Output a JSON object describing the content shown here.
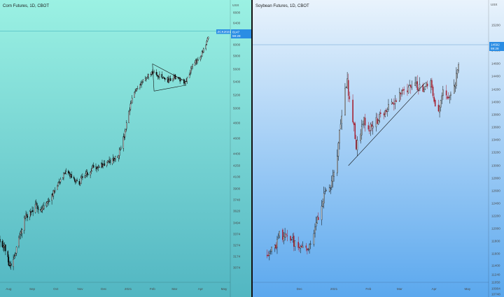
{
  "chart_data": [
    {
      "type": "candlestick",
      "title": "Corn Futures, 1D, CBOT",
      "currency": "USX",
      "ylim": [
        3000,
        6650
      ],
      "y_ticks": [
        "6600",
        "6400",
        "6200",
        "6000",
        "5800",
        "5600",
        "5400",
        "5200",
        "5000",
        "4800",
        "4600",
        "4400",
        "4250",
        "4100",
        "3900",
        "3740",
        "3620",
        "3494",
        "3374",
        "3274",
        "3174",
        "3074"
      ],
      "x_ticks": [
        "Aug",
        "Sep",
        "Oct",
        "Nov",
        "Dec",
        "2021",
        "Feb",
        "Mar",
        "Apr",
        "May"
      ],
      "price_badge": {
        "value": "6147",
        "label": "ZCK2021",
        "countdown": "59:28"
      },
      "gridlines": false,
      "background": [
        "#9bf1e3",
        "#52b6c2"
      ],
      "bullish_color": "#0b0b0b",
      "bearish_color": "#0b0b0b",
      "annotations": {
        "triangle_upper": [
          [
            "2021-02-10",
            5680
          ],
          [
            "2021-03-25",
            5400
          ]
        ],
        "triangle_lower": [
          [
            "2021-02-12",
            5260
          ],
          [
            "2021-03-25",
            5350
          ]
        ],
        "triangle_bracket": [
          [
            "2021-02-10",
            5680
          ],
          [
            "2021-02-12",
            5260
          ]
        ]
      },
      "series_path": [
        [
          "2020-07-31",
          3320
        ],
        [
          "2020-08-06",
          3260
        ],
        [
          "2020-08-11",
          3120
        ],
        [
          "2020-08-14",
          3100
        ],
        [
          "2020-08-20",
          3220
        ],
        [
          "2020-08-26",
          3380
        ],
        [
          "2020-09-01",
          3560
        ],
        [
          "2020-09-08",
          3600
        ],
        [
          "2020-09-16",
          3680
        ],
        [
          "2020-09-22",
          3640
        ],
        [
          "2020-09-30",
          3720
        ],
        [
          "2020-10-07",
          3850
        ],
        [
          "2020-10-13",
          4000
        ],
        [
          "2020-10-20",
          4120
        ],
        [
          "2020-10-26",
          4150
        ],
        [
          "2020-11-02",
          4050
        ],
        [
          "2020-11-09",
          3980
        ],
        [
          "2020-11-12",
          4100
        ],
        [
          "2020-11-20",
          4150
        ],
        [
          "2020-11-27",
          4250
        ],
        [
          "2020-12-04",
          4230
        ],
        [
          "2020-12-11",
          4270
        ],
        [
          "2020-12-18",
          4300
        ],
        [
          "2020-12-28",
          4380
        ],
        [
          "2021-01-05",
          4620
        ],
        [
          "2021-01-12",
          4980
        ],
        [
          "2021-01-15",
          5150
        ],
        [
          "2021-01-21",
          5300
        ],
        [
          "2021-01-27",
          5400
        ],
        [
          "2021-02-02",
          5450
        ],
        [
          "2021-02-09",
          5550
        ],
        [
          "2021-02-17",
          5500
        ],
        [
          "2021-02-24",
          5460
        ],
        [
          "2021-03-03",
          5420
        ],
        [
          "2021-03-10",
          5480
        ],
        [
          "2021-03-17",
          5440
        ],
        [
          "2021-03-24",
          5400
        ],
        [
          "2021-03-31",
          5600
        ],
        [
          "2021-04-07",
          5720
        ],
        [
          "2021-04-14",
          5850
        ],
        [
          "2021-04-19",
          5980
        ],
        [
          "2021-04-22",
          6150
        ]
      ]
    },
    {
      "type": "candlestick",
      "title": "Soybean Futures, 1D, CBOT",
      "currency": "USX",
      "ylim": [
        10600,
        15400
      ],
      "y_ticks": [
        "15200",
        "14800",
        "14600",
        "14400",
        "14200",
        "14000",
        "13800",
        "13600",
        "13400",
        "13200",
        "13000",
        "12800",
        "12600",
        "12400",
        "12200",
        "12000",
        "11800",
        "11600",
        "11400",
        "11240",
        "11050",
        "10904",
        "10748"
      ],
      "x_ticks": [
        "Dec",
        "2021",
        "Feb",
        "Mar",
        "Apr",
        "May"
      ],
      "price_badge": {
        "value": "14592",
        "countdown": "59:28"
      },
      "gridlines": false,
      "background": [
        "#e9f3fc",
        "#5ba8ee"
      ],
      "bullish_color": "#0b0b0b",
      "bearish_color": "#a51d2d",
      "annotations": {
        "trendline": [
          [
            "2021-01-14",
            13000
          ],
          [
            "2021-03-24",
            14300
          ]
        ]
      },
      "series_path": [
        [
          "2020-11-02",
          11600
        ],
        [
          "2020-11-05",
          11680
        ],
        [
          "2020-11-10",
          11720
        ],
        [
          "2020-11-13",
          11900
        ],
        [
          "2020-11-19",
          11850
        ],
        [
          "2020-11-25",
          11800
        ],
        [
          "2020-12-01",
          11700
        ],
        [
          "2020-12-04",
          11650
        ],
        [
          "2020-12-09",
          11700
        ],
        [
          "2020-12-14",
          11900
        ],
        [
          "2020-12-18",
          12200
        ],
        [
          "2020-12-23",
          12500
        ],
        [
          "2020-12-29",
          12700
        ],
        [
          "2021-01-04",
          13200
        ],
        [
          "2021-01-07",
          13700
        ],
        [
          "2021-01-11",
          14200
        ],
        [
          "2021-01-13",
          14300
        ],
        [
          "2021-01-15",
          14000
        ],
        [
          "2021-01-19",
          13600
        ],
        [
          "2021-01-21",
          13300
        ],
        [
          "2021-01-25",
          13500
        ],
        [
          "2021-01-28",
          13700
        ],
        [
          "2021-02-02",
          13600
        ],
        [
          "2021-02-08",
          13700
        ],
        [
          "2021-02-12",
          13750
        ],
        [
          "2021-02-18",
          13900
        ],
        [
          "2021-02-24",
          14000
        ],
        [
          "2021-03-01",
          14100
        ],
        [
          "2021-03-04",
          14150
        ],
        [
          "2021-03-09",
          14250
        ],
        [
          "2021-03-12",
          14200
        ],
        [
          "2021-03-17",
          14250
        ],
        [
          "2021-03-22",
          14150
        ],
        [
          "2021-03-25",
          14250
        ],
        [
          "2021-03-30",
          14300
        ],
        [
          "2021-04-01",
          14000
        ],
        [
          "2021-04-05",
          13900
        ],
        [
          "2021-04-08",
          14150
        ],
        [
          "2021-04-13",
          14050
        ],
        [
          "2021-04-15",
          14100
        ],
        [
          "2021-04-19",
          14250
        ],
        [
          "2021-04-21",
          14400
        ],
        [
          "2021-04-23",
          14550
        ]
      ]
    }
  ]
}
